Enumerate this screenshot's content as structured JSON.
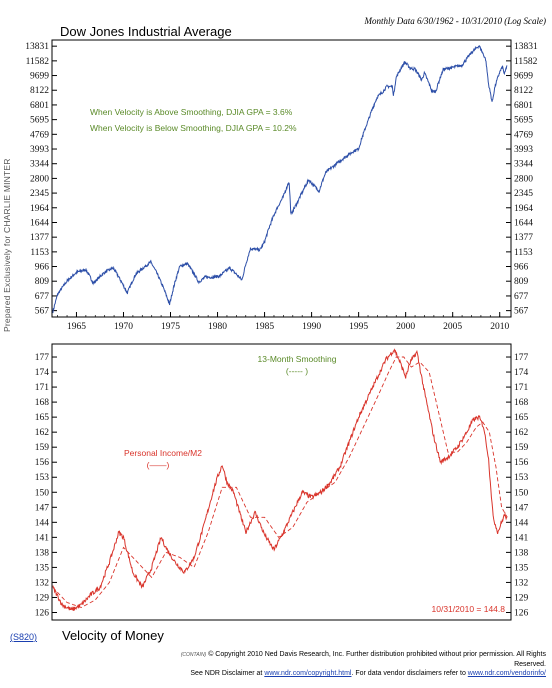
{
  "header": {
    "title": "Dow Jones Industrial Average",
    "meta": "Monthly Data 6/30/1962 - 10/31/2010 (Log Scale)"
  },
  "side_label": "Prepared Exclusively for CHARLIE MINTER",
  "notes": {
    "line1": "When Velocity is Above Smoothing, DJIA GPA = 3.6%",
    "line2": "When Velocity is Below Smoothing, DJIA GPA = 10.2%"
  },
  "bottom": {
    "code": "(S820)",
    "title": "Velocity of Money",
    "smoothing_label": "13-Month Smoothing",
    "smoothing_legend": "(----- )",
    "series_label": "Personal Income/M2",
    "series_legend": "(——)",
    "last_value": "10/31/2010 = 144.8"
  },
  "footer": {
    "mark": "(CONTAIN)",
    "line1": "© Copyright 2010 Ned Davis Research, Inc.  Further distribution prohibited without prior permission.  All Rights Reserved.",
    "line2a": "See NDR Disclaimer at ",
    "link1": "www.ndr.com/copyright.html",
    "line2b": ".  For data vendor disclaimers refer to ",
    "link2": "www.ndr.com/vendorinfo/"
  },
  "colors": {
    "djia": "#2d4fa8",
    "velocity": "#d9342b",
    "smoothing": "#d9342b",
    "note": "#5a8a28"
  },
  "chart_data": [
    {
      "type": "line",
      "title": "Dow Jones Industrial Average",
      "scale": "log",
      "x_ticks": [
        1965,
        1970,
        1975,
        1980,
        1985,
        1990,
        1995,
        2000,
        2005,
        2010
      ],
      "xlim": [
        1962.4,
        2011.2
      ],
      "y_ticks": [
        567,
        677,
        809,
        966,
        1153,
        1377,
        1644,
        1964,
        2345,
        2800,
        3344,
        3993,
        4769,
        5695,
        6801,
        8122,
        9699,
        11582,
        13831
      ],
      "ylim": [
        525,
        14900
      ],
      "series": [
        {
          "x": [
            1962.5,
            1963.0,
            1964.0,
            1965.0,
            1966.0,
            1966.8,
            1968.0,
            1968.9,
            1970.4,
            1971.3,
            1972.9,
            1973.5,
            1974.9,
            1976.0,
            1976.8,
            1978.0,
            1978.7,
            1979.5,
            1980.2,
            1981.3,
            1982.6,
            1983.5,
            1984.5,
            1985.0,
            1986.0,
            1987.0,
            1987.6,
            1987.8,
            1988.5,
            1989.7,
            1990.0,
            1990.8,
            1991.5,
            1992.5,
            1993.5,
            1994.5,
            1995.0,
            1996.0,
            1997.0,
            1997.6,
            1998.0,
            1998.6,
            1998.7,
            1999.0,
            1999.9,
            2000.5,
            2001.0,
            2001.7,
            2002.0,
            2002.8,
            2003.2,
            2004.0,
            2005.0,
            2006.0,
            2007.0,
            2007.8,
            2008.5,
            2008.8,
            2009.2,
            2009.5,
            2010.0,
            2010.3,
            2010.5,
            2010.8
          ],
          "y": [
            560,
            690,
            810,
            900,
            930,
            790,
            900,
            950,
            700,
            880,
            1020,
            900,
            610,
            970,
            1000,
            800,
            850,
            850,
            860,
            950,
            820,
            1200,
            1180,
            1300,
            1800,
            2250,
            2700,
            1800,
            2100,
            2750,
            2650,
            2400,
            3000,
            3300,
            3600,
            3900,
            4000,
            5600,
            7500,
            8000,
            8500,
            8500,
            7550,
            9500,
            11400,
            10600,
            10500,
            9200,
            10000,
            8000,
            8000,
            10450,
            10700,
            11000,
            12800,
            13900,
            11800,
            8800,
            7000,
            8500,
            10100,
            10800,
            9800,
            11100
          ]
        }
      ]
    },
    {
      "type": "line",
      "title": "Velocity of Money",
      "xlim": [
        1962.4,
        2011.2
      ],
      "y_ticks": [
        126,
        129,
        132,
        135,
        138,
        141,
        144,
        147,
        150,
        153,
        156,
        159,
        162,
        165,
        168,
        171,
        174,
        177
      ],
      "ylim": [
        124.5,
        179.6
      ],
      "last_value_label": "10/31/2010 = 144.8",
      "series": [
        {
          "name": "Personal Income/M2",
          "x": [
            1962.5,
            1963.5,
            1964.5,
            1965.5,
            1966.5,
            1967.5,
            1968.5,
            1969.5,
            1970.0,
            1971.0,
            1972.0,
            1973.0,
            1974.0,
            1974.5,
            1975.5,
            1976.5,
            1977.5,
            1978.5,
            1979.5,
            1980.0,
            1980.5,
            1981.0,
            1981.7,
            1982.5,
            1983.0,
            1984.0,
            1985.0,
            1986.0,
            1987.0,
            1988.0,
            1989.0,
            1990.0,
            1991.0,
            1992.0,
            1993.0,
            1994.0,
            1995.0,
            1996.0,
            1997.0,
            1997.9,
            1998.8,
            1999.4,
            2000.0,
            2000.5,
            2001.2,
            2002.0,
            2003.0,
            2003.7,
            2004.5,
            2005.5,
            2006.5,
            2007.2,
            2007.8,
            2008.3,
            2008.8,
            2009.3,
            2009.8,
            2010.2,
            2010.5,
            2010.8
          ],
          "y": [
            131,
            127.5,
            126.5,
            127.5,
            129.5,
            131,
            136,
            142,
            141,
            134,
            131,
            135,
            141,
            139,
            136,
            134,
            137,
            143,
            150,
            153,
            155.5,
            152,
            150,
            145,
            142,
            146,
            141.5,
            138.5,
            142,
            146,
            150,
            149,
            150,
            152,
            155,
            160,
            165,
            169,
            173,
            176.5,
            178.5,
            176,
            173,
            176,
            178,
            170,
            161,
            156,
            157,
            159,
            162,
            164.5,
            165,
            163,
            157,
            145,
            142,
            144,
            145.5,
            144.8
          ]
        },
        {
          "name": "13-Month Smoothing",
          "x": [
            1962.5,
            1964.0,
            1965.5,
            1967.0,
            1968.5,
            1970.0,
            1971.5,
            1973.0,
            1974.5,
            1976.0,
            1977.5,
            1979.0,
            1980.5,
            1982.0,
            1983.5,
            1985.0,
            1986.5,
            1988.0,
            1989.5,
            1991.0,
            1992.5,
            1994.0,
            1995.5,
            1997.0,
            1998.2,
            1999.0,
            1999.8,
            2000.6,
            2001.5,
            2002.5,
            2003.5,
            2004.5,
            2005.5,
            2006.5,
            2007.5,
            2008.2,
            2008.9,
            2009.6,
            2010.2,
            2010.8
          ],
          "y": [
            131,
            128,
            127,
            128.5,
            132,
            139,
            136,
            133,
            138,
            137,
            135,
            142,
            151,
            151,
            145,
            145,
            141,
            143,
            148,
            150,
            152,
            157,
            163,
            169,
            174,
            177,
            177,
            175,
            176,
            174,
            166,
            158,
            158,
            160,
            163,
            164,
            162,
            155,
            147,
            145
          ]
        }
      ]
    }
  ]
}
